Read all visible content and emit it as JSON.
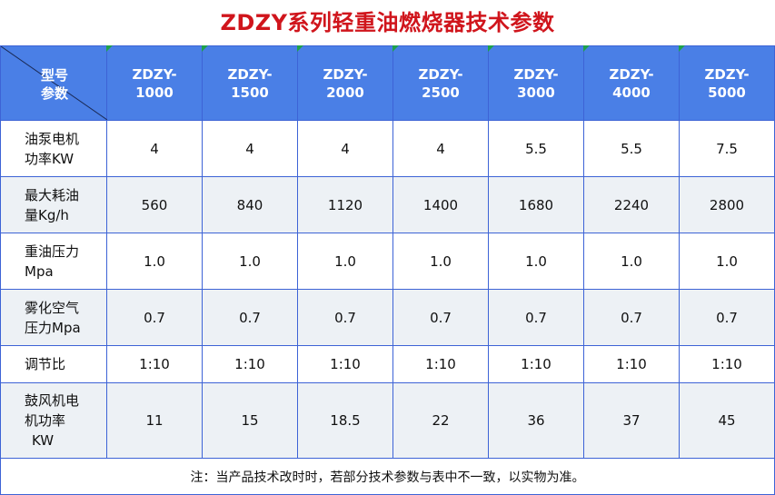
{
  "title": "ZDZY系列轻重油燃烧器技术参数",
  "corner": {
    "top": "型号",
    "bottom": "参数"
  },
  "models": [
    {
      "prefix": "ZDZY-",
      "num": "1000"
    },
    {
      "prefix": "ZDZY-",
      "num": "1500"
    },
    {
      "prefix": "ZDZY-",
      "num": "2000"
    },
    {
      "prefix": "ZDZY-",
      "num": "2500"
    },
    {
      "prefix": "ZDZY-",
      "num": "3000"
    },
    {
      "prefix": "ZDZY-",
      "num": "4000"
    },
    {
      "prefix": "ZDZY-",
      "num": "5000"
    }
  ],
  "rows": [
    {
      "label": [
        "油泵电机",
        "功率KW"
      ],
      "values": [
        "4",
        "4",
        "4",
        "4",
        "5.5",
        "5.5",
        "7.5"
      ]
    },
    {
      "label": [
        "最大耗油",
        "量Kg/h"
      ],
      "values": [
        "560",
        "840",
        "1120",
        "1400",
        "1680",
        "2240",
        "2800"
      ]
    },
    {
      "label": [
        "重油压力",
        "Mpa"
      ],
      "values": [
        "1.0",
        "1.0",
        "1.0",
        "1.0",
        "1.0",
        "1.0",
        "1.0"
      ]
    },
    {
      "label": [
        "雾化空气",
        "压力Mpa"
      ],
      "values": [
        "0.7",
        "0.7",
        "0.7",
        "0.7",
        "0.7",
        "0.7",
        "0.7"
      ]
    },
    {
      "label": [
        "调节比"
      ],
      "values": [
        "1:10",
        "1:10",
        "1:10",
        "1:10",
        "1:10",
        "1:10",
        "1:10"
      ]
    },
    {
      "label": [
        "鼓风机电",
        "机功率",
        "KW"
      ],
      "values": [
        "11",
        "15",
        "18.5",
        "22",
        "36",
        "37",
        "45"
      ]
    }
  ],
  "note": "注：当产品技术改时时，若部分技术参数与表中不一致，以实物为准。"
}
